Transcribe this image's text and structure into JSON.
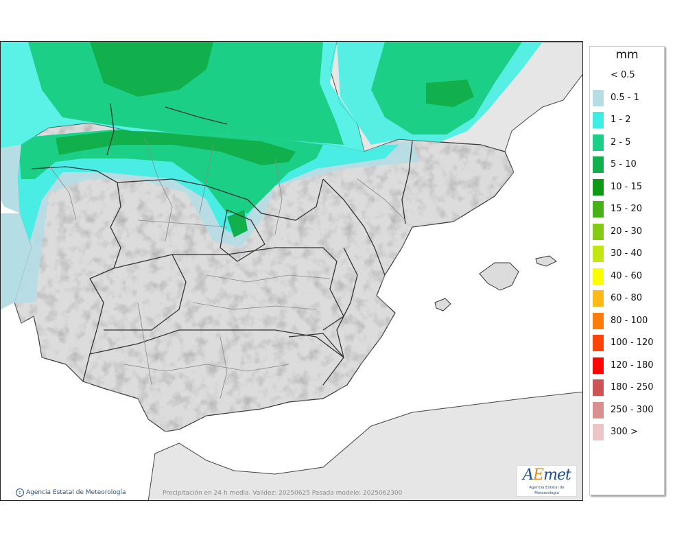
{
  "map": {
    "caption": "Precipitación en 24 h media. Validez: 20250625 Pasada modelo: 2025062300",
    "copyright": "Agencia Estatal de Meteorología",
    "logo": {
      "wordmark_a": "A",
      "wordmark_e": "E",
      "wordmark_rest": "met",
      "subtitle": "Agencia Estatal de Meteorología"
    }
  },
  "legend": {
    "unit": "mm",
    "items": [
      {
        "label": "< 0.5",
        "color": "#ffffff"
      },
      {
        "label": "0.5 - 1",
        "color": "#b5dde4"
      },
      {
        "label": "1 - 2",
        "color": "#3deee2"
      },
      {
        "label": "2 - 5",
        "color": "#1ccf86"
      },
      {
        "label": "5 - 10",
        "color": "#12b04d"
      },
      {
        "label": "10 - 15",
        "color": "#0a9a14"
      },
      {
        "label": "15 - 20",
        "color": "#47b215"
      },
      {
        "label": "20 - 30",
        "color": "#85ca14"
      },
      {
        "label": "30 - 40",
        "color": "#c3e514"
      },
      {
        "label": "40 - 60",
        "color": "#fdfd02"
      },
      {
        "label": "60 - 80",
        "color": "#fcb919"
      },
      {
        "label": "80 - 100",
        "color": "#fd7b0a"
      },
      {
        "label": "100 - 120",
        "color": "#fd4308"
      },
      {
        "label": "120 - 180",
        "color": "#fd0505"
      },
      {
        "label": "180 - 250",
        "color": "#cc5454"
      },
      {
        "label": "250 - 300",
        "color": "#db8e8e"
      },
      {
        "label": "300 >",
        "color": "#ecc6c6"
      }
    ]
  },
  "colors": {
    "sea": "#ffffff",
    "land": "#dcdcdc",
    "border": "#333333"
  }
}
